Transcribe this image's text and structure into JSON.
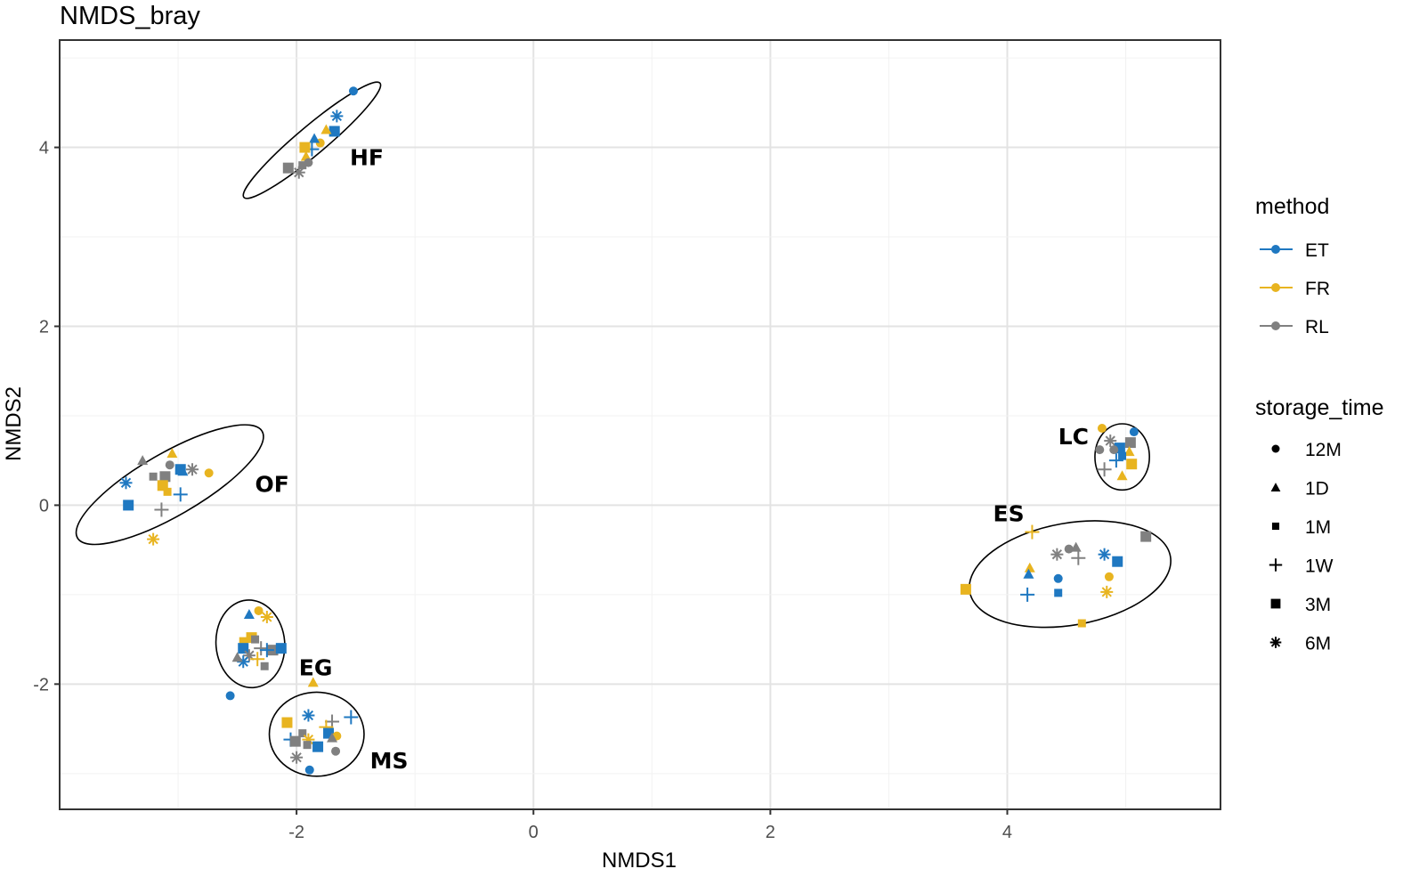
{
  "chart_data": {
    "type": "scatter",
    "title": "NMDS_bray",
    "xlabel": "NMDS1",
    "ylabel": "NMDS2",
    "xlim": [
      -4.0,
      5.8
    ],
    "ylim": [
      -3.4,
      5.2
    ],
    "x_ticks": [
      -2,
      0,
      2,
      4
    ],
    "y_ticks": [
      -2,
      0,
      2,
      4
    ],
    "x_tick_labels": [
      "-2",
      "0",
      "2",
      "4"
    ],
    "y_tick_labels": [
      "-2",
      "0",
      "2",
      "4"
    ],
    "grid": true,
    "legend_placement": "right",
    "colors": {
      "ET": "#1f78c1",
      "FR": "#e8b420",
      "RL": "#808080"
    },
    "legends": {
      "method": {
        "title": "method",
        "items": [
          "ET",
          "FR",
          "RL"
        ]
      },
      "storage_time": {
        "title": "storage_time",
        "items": [
          "12M",
          "1D",
          "1M",
          "1W",
          "3M",
          "6M"
        ],
        "shapes": [
          "circle",
          "triangle",
          "small-square",
          "plus",
          "square",
          "asterisk"
        ]
      }
    },
    "groups": [
      {
        "label": "HF",
        "label_pos": [
          -1.55,
          3.8
        ],
        "ellipse": {
          "cx": -1.87,
          "cy": 4.08,
          "rx": 0.75,
          "ry": 0.16,
          "angle_deg": 40
        }
      },
      {
        "label": "OF",
        "label_pos": [
          -2.35,
          0.15
        ],
        "ellipse": {
          "cx": -3.07,
          "cy": 0.23,
          "rx": 0.9,
          "ry": 0.35,
          "angle_deg": 30
        }
      },
      {
        "label": "EG",
        "label_pos": [
          -1.98,
          -1.9
        ],
        "ellipse": {
          "cx": -2.39,
          "cy": -1.55,
          "rx": 0.29,
          "ry": 0.49,
          "angle_deg": 5
        }
      },
      {
        "label": "MS",
        "label_pos": [
          -1.38,
          -2.94
        ],
        "ellipse": {
          "cx": -1.83,
          "cy": -2.56,
          "rx": 0.4,
          "ry": 0.47,
          "angle_deg": 0
        }
      },
      {
        "label": "LC",
        "label_pos": [
          4.43,
          0.68
        ],
        "ellipse": {
          "cx": 4.97,
          "cy": 0.54,
          "rx": 0.23,
          "ry": 0.37,
          "angle_deg": 0
        }
      },
      {
        "label": "ES",
        "label_pos": [
          3.88,
          -0.18
        ],
        "ellipse": {
          "cx": 4.53,
          "cy": -0.77,
          "rx": 0.86,
          "ry": 0.57,
          "angle_deg": 10
        }
      }
    ],
    "series": [
      {
        "group": "HF",
        "points": [
          [
            -1.52,
            4.63,
            "ET",
            "12M"
          ],
          [
            -1.66,
            4.35,
            "ET",
            "6M"
          ],
          [
            -1.68,
            4.18,
            "ET",
            "3M"
          ],
          [
            -1.75,
            4.2,
            "FR",
            "1D"
          ],
          [
            -1.8,
            4.05,
            "FR",
            "12M"
          ],
          [
            -1.85,
            4.1,
            "ET",
            "1D"
          ],
          [
            -1.87,
            3.98,
            "ET",
            "1W"
          ],
          [
            -1.93,
            4.0,
            "FR",
            "3M"
          ],
          [
            -1.92,
            3.9,
            "FR",
            "1D"
          ],
          [
            -1.95,
            3.8,
            "RL",
            "1M"
          ],
          [
            -1.98,
            3.72,
            "RL",
            "6M"
          ],
          [
            -2.07,
            3.77,
            "RL",
            "3M"
          ],
          [
            -1.9,
            3.83,
            "RL",
            "12M"
          ]
        ]
      },
      {
        "group": "OF",
        "points": [
          [
            -2.74,
            0.36,
            "FR",
            "12M"
          ],
          [
            -2.88,
            0.4,
            "RL",
            "6M"
          ],
          [
            -2.98,
            0.4,
            "ET",
            "3M"
          ],
          [
            -2.96,
            0.38,
            "ET",
            "1D"
          ],
          [
            -2.98,
            0.12,
            "ET",
            "1W"
          ],
          [
            -3.05,
            0.58,
            "FR",
            "1D"
          ],
          [
            -3.07,
            0.45,
            "RL",
            "12M"
          ],
          [
            -3.11,
            0.32,
            "RL",
            "3M"
          ],
          [
            -3.13,
            0.22,
            "FR",
            "3M"
          ],
          [
            -3.09,
            0.15,
            "FR",
            "1M"
          ],
          [
            -3.14,
            -0.05,
            "RL",
            "1W"
          ],
          [
            -3.21,
            0.32,
            "RL",
            "1M"
          ],
          [
            -3.3,
            0.5,
            "RL",
            "1D"
          ],
          [
            -3.21,
            -0.38,
            "FR",
            "6M"
          ],
          [
            -3.44,
            0.25,
            "ET",
            "6M"
          ],
          [
            -3.42,
            0.0,
            "ET",
            "3M"
          ]
        ]
      },
      {
        "group": "EG",
        "points": [
          [
            -2.25,
            -1.25,
            "FR",
            "6M"
          ],
          [
            -2.32,
            -1.18,
            "FR",
            "12M"
          ],
          [
            -2.4,
            -1.22,
            "ET",
            "1D"
          ],
          [
            -2.38,
            -1.48,
            "FR",
            "3M"
          ],
          [
            -2.35,
            -1.5,
            "RL",
            "1M"
          ],
          [
            -2.3,
            -1.6,
            "RL",
            "1W"
          ],
          [
            -2.2,
            -1.62,
            "RL",
            "3M"
          ],
          [
            -2.13,
            -1.6,
            "ET",
            "3M"
          ],
          [
            -2.25,
            -1.62,
            "ET",
            "1W"
          ],
          [
            -2.45,
            -1.52,
            "FR",
            "1M"
          ],
          [
            -2.45,
            -1.6,
            "ET",
            "3M"
          ],
          [
            -2.4,
            -1.68,
            "RL",
            "6M"
          ],
          [
            -2.33,
            -1.72,
            "FR",
            "1W"
          ],
          [
            -2.27,
            -1.8,
            "RL",
            "1M"
          ],
          [
            -2.45,
            -1.75,
            "ET",
            "6M"
          ],
          [
            -2.5,
            -1.7,
            "RL",
            "1D"
          ],
          [
            -2.56,
            -2.13,
            "ET",
            "12M"
          ]
        ]
      },
      {
        "group": "MS",
        "points": [
          [
            -1.86,
            -1.98,
            "FR",
            "1D"
          ],
          [
            -1.54,
            -2.37,
            "ET",
            "1W"
          ],
          [
            -1.7,
            -2.42,
            "RL",
            "1W"
          ],
          [
            -1.9,
            -2.35,
            "ET",
            "6M"
          ],
          [
            -1.75,
            -2.48,
            "FR",
            "1W"
          ],
          [
            -1.73,
            -2.55,
            "ET",
            "3M"
          ],
          [
            -1.66,
            -2.58,
            "FR",
            "12M"
          ],
          [
            -1.7,
            -2.6,
            "RL",
            "1D"
          ],
          [
            -2.08,
            -2.43,
            "FR",
            "3M"
          ],
          [
            -1.95,
            -2.55,
            "RL",
            "1M"
          ],
          [
            -1.9,
            -2.62,
            "FR",
            "6M"
          ],
          [
            -2.05,
            -2.62,
            "ET",
            "1W"
          ],
          [
            -2.01,
            -2.64,
            "RL",
            "3M"
          ],
          [
            -1.91,
            -2.68,
            "RL",
            "1M"
          ],
          [
            -1.82,
            -2.7,
            "ET",
            "3M"
          ],
          [
            -1.67,
            -2.75,
            "RL",
            "12M"
          ],
          [
            -2.0,
            -2.82,
            "RL",
            "6M"
          ],
          [
            -1.89,
            -2.96,
            "ET",
            "12M"
          ]
        ]
      },
      {
        "group": "LC",
        "points": [
          [
            4.8,
            0.86,
            "FR",
            "12M"
          ],
          [
            5.07,
            0.82,
            "ET",
            "12M"
          ],
          [
            4.87,
            0.72,
            "RL",
            "6M"
          ],
          [
            5.04,
            0.7,
            "RL",
            "3M"
          ],
          [
            4.95,
            0.64,
            "ET",
            "3M"
          ],
          [
            4.9,
            0.62,
            "RL",
            "12M"
          ],
          [
            4.78,
            0.62,
            "RL",
            "12M"
          ],
          [
            5.03,
            0.6,
            "FR",
            "1D"
          ],
          [
            4.97,
            0.55,
            "ET",
            "1M"
          ],
          [
            4.92,
            0.5,
            "ET",
            "1W"
          ],
          [
            5.05,
            0.46,
            "FR",
            "3M"
          ],
          [
            4.82,
            0.4,
            "RL",
            "1W"
          ],
          [
            4.97,
            0.33,
            "FR",
            "1D"
          ]
        ]
      },
      {
        "group": "ES",
        "points": [
          [
            3.65,
            -0.94,
            "FR",
            "3M"
          ],
          [
            4.21,
            -0.3,
            "FR",
            "1W"
          ],
          [
            4.42,
            -0.55,
            "RL",
            "6M"
          ],
          [
            4.52,
            -0.49,
            "RL",
            "12M"
          ],
          [
            4.58,
            -0.47,
            "RL",
            "1D"
          ],
          [
            4.6,
            -0.59,
            "RL",
            "1W"
          ],
          [
            4.82,
            -0.55,
            "ET",
            "6M"
          ],
          [
            4.93,
            -0.63,
            "ET",
            "3M"
          ],
          [
            5.17,
            -0.35,
            "RL",
            "3M"
          ],
          [
            4.19,
            -0.7,
            "FR",
            "1D"
          ],
          [
            4.18,
            -0.77,
            "ET",
            "1D"
          ],
          [
            4.43,
            -0.82,
            "ET",
            "12M"
          ],
          [
            4.86,
            -0.8,
            "FR",
            "12M"
          ],
          [
            4.17,
            -1.0,
            "ET",
            "1W"
          ],
          [
            4.43,
            -0.98,
            "ET",
            "1M"
          ],
          [
            4.84,
            -0.97,
            "FR",
            "6M"
          ],
          [
            4.63,
            -1.32,
            "FR",
            "1M"
          ]
        ]
      }
    ]
  }
}
